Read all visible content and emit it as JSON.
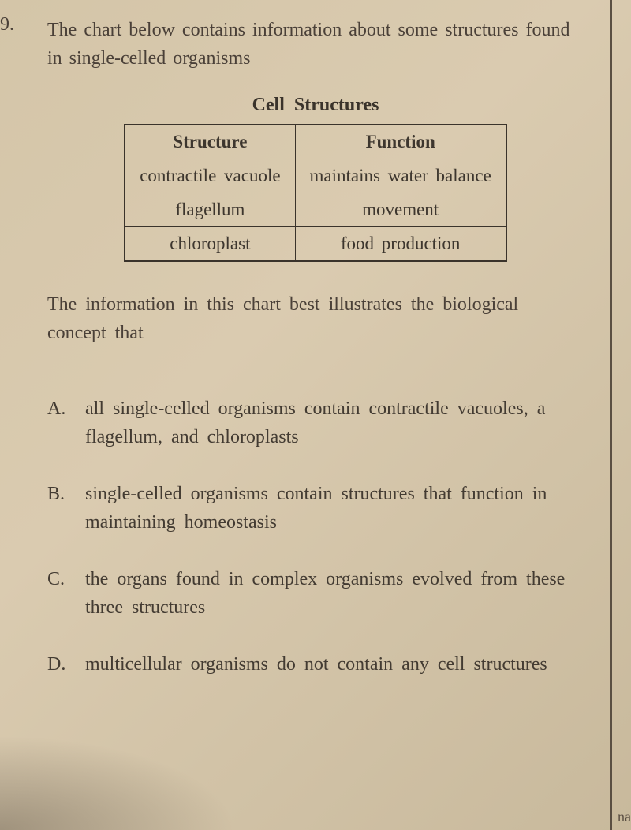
{
  "question_number": "9.",
  "intro_text": "The chart below contains information about some structures found in single-celled organisms",
  "table": {
    "title": "Cell  Structures",
    "headers": [
      "Structure",
      "Function"
    ],
    "rows": [
      [
        "contractile vacuole",
        "maintains water balance"
      ],
      [
        "flagellum",
        "movement"
      ],
      [
        "chloroplast",
        "food production"
      ]
    ],
    "border_color": "#3a332b",
    "cell_fontsize": 23
  },
  "followup_text": "The information in this chart best illustrates the biological concept that",
  "options": [
    {
      "letter": "A.",
      "text": "all single-celled organisms contain contractile vacuoles, a flagellum, and chloroplasts"
    },
    {
      "letter": "B.",
      "text": "single-celled organisms contain structures that function in maintaining homeostasis"
    },
    {
      "letter": "C.",
      "text": "the organs found in complex organisms evolved from these three structures"
    },
    {
      "letter": "D.",
      "text": "multicellular organisms do not contain any cell structures"
    }
  ],
  "corner_fragment": "na",
  "styling": {
    "background_gradient": [
      "#d4c5a8",
      "#dacbb0",
      "#c8b99c"
    ],
    "text_color": "#3a3530",
    "body_fontsize": 24,
    "font_family": "Georgia, Times New Roman, serif"
  }
}
